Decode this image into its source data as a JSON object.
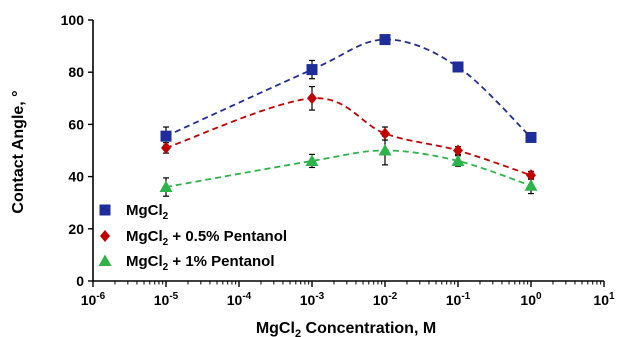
{
  "chart_data": {
    "type": "scatter",
    "xscale": "log",
    "xlim": [
      1e-06,
      10
    ],
    "ylim": [
      0,
      100
    ],
    "xlabel": "MgCl₂ Concentration, M",
    "ylabel": "Contact Angle, °",
    "grid": false,
    "legend_position": "lower-left",
    "x_ticks": [
      {
        "value": 1e-06,
        "base": "10",
        "exp": "-6"
      },
      {
        "value": 1e-05,
        "base": "10",
        "exp": "-5"
      },
      {
        "value": 0.0001,
        "base": "10",
        "exp": "-4"
      },
      {
        "value": 0.001,
        "base": "10",
        "exp": "-3"
      },
      {
        "value": 0.01,
        "base": "10",
        "exp": "-2"
      },
      {
        "value": 0.1,
        "base": "10",
        "exp": "-1"
      },
      {
        "value": 1,
        "base": "10",
        "exp": "0"
      },
      {
        "value": 10,
        "base": "10",
        "exp": "1"
      }
    ],
    "y_ticks": [
      "0",
      "20",
      "40",
      "60",
      "80",
      "100"
    ],
    "series": [
      {
        "name": "MgCl₂",
        "marker": "square",
        "color": "#1f2d9a",
        "trend_color": "#1f2d9a",
        "x": [
          1e-05,
          0.001,
          0.01,
          0.1,
          1
        ],
        "y": [
          55.5,
          81.0,
          92.5,
          82.0,
          55.0
        ],
        "err": [
          3.5,
          3.5,
          1.5,
          1.5,
          1.5
        ]
      },
      {
        "name": "MgCl₂ + 0.5% Pentanol",
        "marker": "diamond",
        "color": "#c00000",
        "trend_color": "#c00000",
        "x": [
          1e-05,
          0.001,
          0.01,
          0.1,
          1
        ],
        "y": [
          51.0,
          70.0,
          56.5,
          50.0,
          40.5
        ],
        "err": [
          2.0,
          4.5,
          2.5,
          1.5,
          1.5
        ]
      },
      {
        "name": "MgCl₂ + 1% Pentanol",
        "marker": "triangle",
        "color": "#2db34a",
        "trend_color": "#2db34a",
        "x": [
          1e-05,
          0.001,
          0.01,
          0.1,
          1
        ],
        "y": [
          36.0,
          46.0,
          50.0,
          46.0,
          36.5
        ],
        "err": [
          3.5,
          2.5,
          5.5,
          2.0,
          3.0
        ]
      }
    ]
  }
}
